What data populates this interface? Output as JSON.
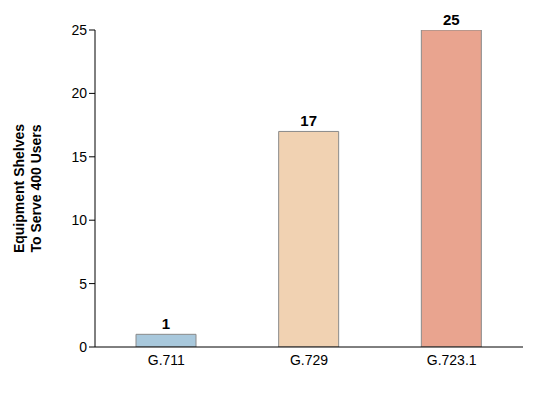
{
  "chart_data": {
    "type": "bar",
    "y_label": "Equipment Shelves To Serve 400 Users",
    "categories": [
      "G.711",
      "G.729",
      "G.723.1"
    ],
    "values": [
      1,
      17,
      25
    ],
    "colors": [
      "#a8c8dc",
      "#f1d2b2",
      "#e9a48f"
    ],
    "ylim": [
      0,
      25
    ],
    "yticks": [
      0,
      5,
      10,
      15,
      20,
      25
    ],
    "grid": false,
    "data_labels": true
  }
}
